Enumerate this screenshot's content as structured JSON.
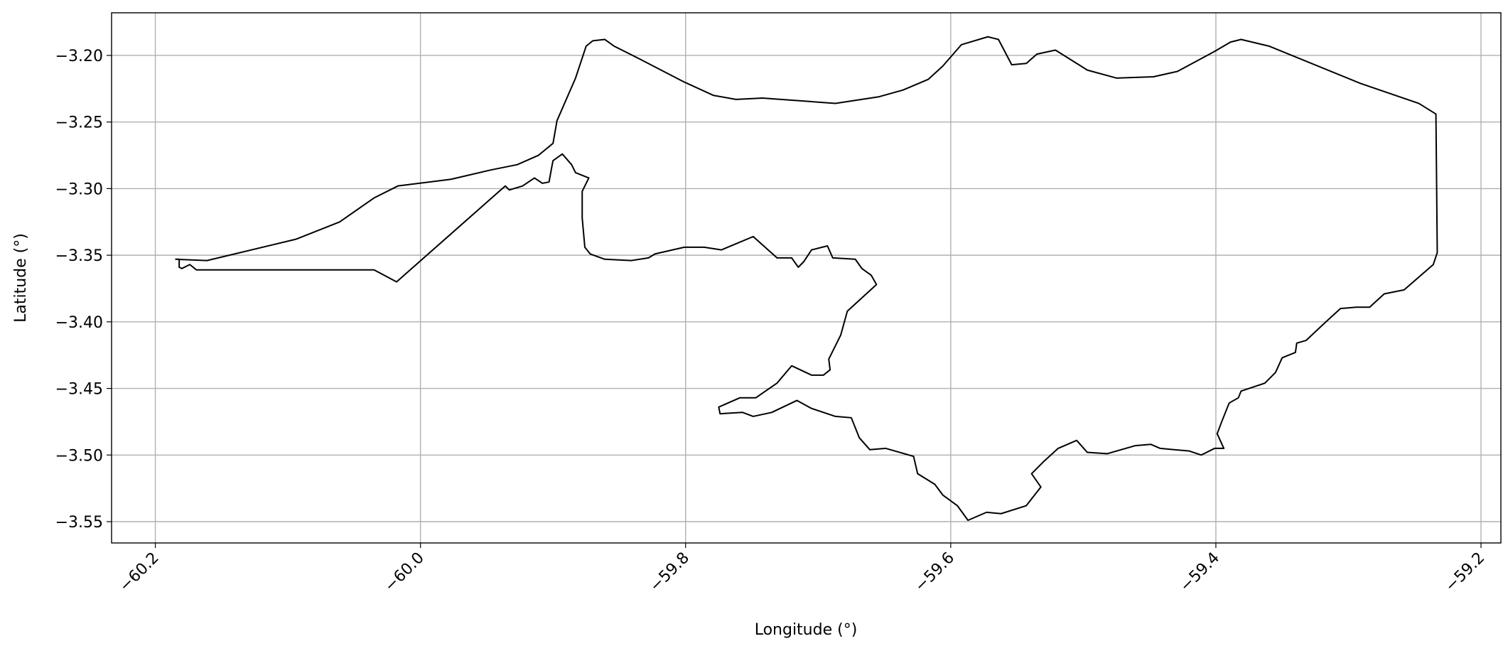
{
  "chart_data": {
    "type": "line",
    "xlabel": "Longitude (°)",
    "ylabel": "Latitude (°)",
    "x": [
      -60.185,
      -60.161,
      -60.094,
      -60.061,
      -60.035,
      -60.017,
      -59.977,
      -59.947,
      -59.927,
      -59.911,
      -59.9,
      -59.897,
      -59.883,
      -59.875,
      -59.87,
      -59.861,
      -59.854,
      -59.834,
      -59.801,
      -59.779,
      -59.762,
      -59.742,
      -59.687,
      -59.654,
      -59.636,
      -59.617,
      -59.606,
      -59.592,
      -59.572,
      -59.564,
      -59.554,
      -59.543,
      -59.535,
      -59.521,
      -59.497,
      -59.475,
      -59.447,
      -59.429,
      -59.401,
      -59.389,
      -59.381,
      -59.36,
      -59.291,
      -59.247,
      -59.234,
      -59.233,
      -59.236,
      -59.258,
      -59.273,
      -59.284,
      -59.294,
      -59.306,
      -59.317,
      -59.332,
      -59.339,
      -59.34,
      -59.35,
      -59.355,
      -59.363,
      -59.381,
      -59.383,
      -59.39,
      -59.396,
      -59.399,
      -59.394,
      -59.401,
      -59.411,
      -59.42,
      -59.442,
      -59.449,
      -59.461,
      -59.482,
      -59.497,
      -59.505,
      -59.519,
      -59.53,
      -59.539,
      -59.532,
      -59.543,
      -59.562,
      -59.573,
      -59.587,
      -59.595,
      -59.606,
      -59.612,
      -59.625,
      -59.628,
      -59.649,
      -59.661,
      -59.669,
      -59.675,
      -59.687,
      -59.705,
      -59.716,
      -59.735,
      -59.749,
      -59.757,
      -59.774,
      -59.775,
      -59.759,
      -59.747,
      -59.731,
      -59.72,
      -59.705,
      -59.696,
      -59.691,
      -59.692,
      -59.683,
      -59.678,
      -59.656,
      -59.66,
      -59.667,
      -59.672,
      -59.689,
      -59.693,
      -59.705,
      -59.711,
      -59.715,
      -59.72,
      -59.731,
      -59.749,
      -59.773,
      -59.786,
      -59.801,
      -59.823,
      -59.828,
      -59.841,
      -59.861,
      -59.872,
      -59.876,
      -59.878,
      -59.878,
      -59.873,
      -59.883,
      -59.886,
      -59.893,
      -59.9,
      -59.901,
      -59.903,
      -59.908,
      -59.914,
      -59.923,
      -59.933,
      -59.936,
      -60.018,
      -60.035,
      -60.169,
      -60.174,
      -60.18,
      -60.182,
      -60.182,
      -60.185
    ],
    "values": [
      -3.353,
      -3.354,
      -3.338,
      -3.325,
      -3.307,
      -3.298,
      -3.293,
      -3.286,
      -3.282,
      -3.275,
      -3.266,
      -3.249,
      -3.217,
      -3.193,
      -3.189,
      -3.188,
      -3.193,
      -3.203,
      -3.22,
      -3.23,
      -3.233,
      -3.232,
      -3.236,
      -3.231,
      -3.226,
      -3.218,
      -3.208,
      -3.192,
      -3.186,
      -3.188,
      -3.207,
      -3.206,
      -3.199,
      -3.196,
      -3.211,
      -3.217,
      -3.216,
      -3.212,
      -3.197,
      -3.19,
      -3.188,
      -3.193,
      -3.221,
      -3.236,
      -3.244,
      -3.348,
      -3.357,
      -3.376,
      -3.379,
      -3.389,
      -3.389,
      -3.39,
      -3.4,
      -3.414,
      -3.416,
      -3.423,
      -3.427,
      -3.438,
      -3.446,
      -3.452,
      -3.457,
      -3.461,
      -3.476,
      -3.484,
      -3.495,
      -3.495,
      -3.5,
      -3.497,
      -3.495,
      -3.492,
      -3.493,
      -3.499,
      -3.498,
      -3.489,
      -3.495,
      -3.505,
      -3.514,
      -3.524,
      -3.538,
      -3.544,
      -3.543,
      -3.549,
      -3.538,
      -3.53,
      -3.522,
      -3.514,
      -3.501,
      -3.495,
      -3.496,
      -3.487,
      -3.472,
      -3.471,
      -3.465,
      -3.459,
      -3.468,
      -3.471,
      -3.468,
      -3.469,
      -3.464,
      -3.457,
      -3.457,
      -3.446,
      -3.433,
      -3.44,
      -3.44,
      -3.436,
      -3.428,
      -3.41,
      -3.392,
      -3.372,
      -3.365,
      -3.36,
      -3.353,
      -3.352,
      -3.343,
      -3.346,
      -3.355,
      -3.359,
      -3.352,
      -3.352,
      -3.336,
      -3.346,
      -3.344,
      -3.344,
      -3.349,
      -3.352,
      -3.354,
      -3.353,
      -3.349,
      -3.344,
      -3.322,
      -3.302,
      -3.292,
      -3.288,
      -3.282,
      -3.274,
      -3.279,
      -3.284,
      -3.295,
      -3.296,
      -3.292,
      -3.298,
      -3.301,
      -3.298,
      -3.37,
      -3.361,
      -3.361,
      -3.357,
      -3.36,
      -3.359,
      -3.353,
      -3.353
    ],
    "color": "#000000",
    "xlim": [
      -60.233,
      -59.185
    ],
    "ylim": [
      -3.566,
      -3.168
    ],
    "xticks": [
      {
        "value": -60.2,
        "label": "−60.2"
      },
      {
        "value": -60.0,
        "label": "−60.0"
      },
      {
        "value": -59.8,
        "label": "−59.8"
      },
      {
        "value": -59.6,
        "label": "−59.6"
      },
      {
        "value": -59.4,
        "label": "−59.4"
      },
      {
        "value": -59.2,
        "label": "−59.2"
      }
    ],
    "yticks": [
      {
        "value": -3.2,
        "label": "−3.20"
      },
      {
        "value": -3.25,
        "label": "−3.25"
      },
      {
        "value": -3.3,
        "label": "−3.30"
      },
      {
        "value": -3.35,
        "label": "−3.35"
      },
      {
        "value": -3.4,
        "label": "−3.40"
      },
      {
        "value": -3.45,
        "label": "−3.45"
      },
      {
        "value": -3.5,
        "label": "−3.50"
      },
      {
        "value": -3.55,
        "label": "−3.55"
      }
    ],
    "grid": true
  }
}
